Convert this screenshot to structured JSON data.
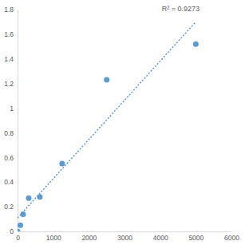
{
  "chart_data": {
    "type": "scatter",
    "x": [
      0,
      78,
      156,
      312,
      625,
      1250,
      2500,
      5000
    ],
    "values": [
      0,
      0.05,
      0.14,
      0.27,
      0.28,
      0.55,
      1.23,
      1.52
    ],
    "color": "#5b9bd5",
    "marker": "circle",
    "xlim": [
      0,
      6000
    ],
    "xticks": [
      0,
      1000,
      2000,
      3000,
      4000,
      5000,
      6000
    ],
    "ylim": [
      0,
      1.8
    ],
    "yticks": [
      0,
      0.2,
      0.4,
      0.6,
      0.8,
      1,
      1.2,
      1.4,
      1.6,
      1.8
    ],
    "grid": false,
    "trendline": {
      "x": [
        0,
        5000
      ],
      "values": [
        0.11,
        1.7
      ],
      "line_style": "dotted",
      "color": "#5b9bd5"
    },
    "annotations": [
      {
        "text": "R² = 0.9273"
      }
    ]
  }
}
